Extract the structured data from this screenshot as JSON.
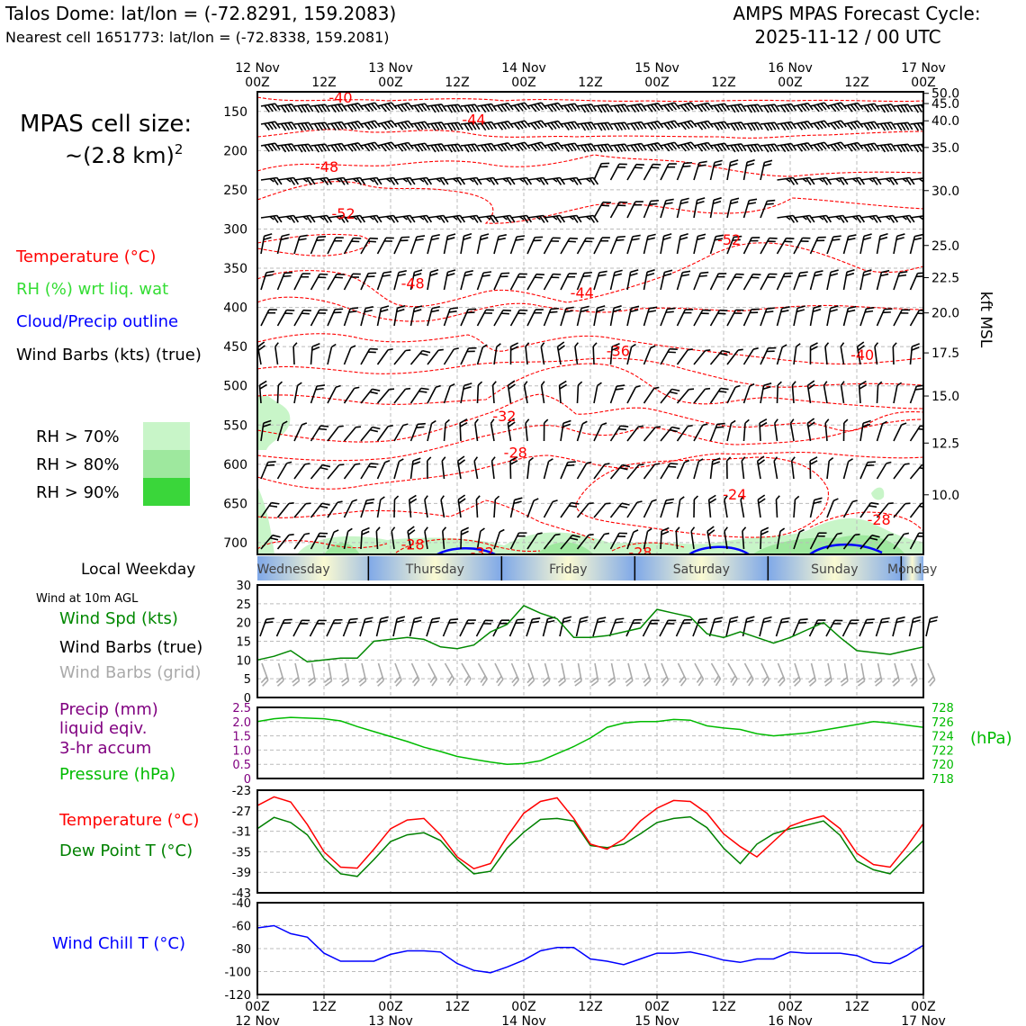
{
  "header": {
    "site_line": "Talos Dome: lat/lon = (-72.8291, 159.2083)",
    "cell_line": "Nearest cell 1651773: lat/lon = (-72.8338, 159.2081)",
    "cycle_title": "AMPS MPAS Forecast Cycle:",
    "cycle_time": "2025-11-12 / 00 UTC"
  },
  "left_panel": {
    "cell_size_title": "MPAS cell size:",
    "cell_size_value": "~(2.8 km)",
    "cell_size_exp": "2",
    "legend_temperature": "Temperature (°C)",
    "legend_rh": "RH (%) wrt liq. wat",
    "legend_cloud": "Cloud/Precip outline",
    "legend_barbs": "Wind Barbs (kts) (true)",
    "rh_swatches": [
      {
        "label": "RH > 70%",
        "color": "#c8f5c8"
      },
      {
        "label": "RH > 80%",
        "color": "#9ee89e"
      },
      {
        "label": "RH > 90%",
        "color": "#3ad63a"
      }
    ],
    "weekday_label": "Local Weekday",
    "wind_10m_label": "Wind at 10m AGL",
    "wind_spd_label": "Wind Spd (kts)",
    "wind_barbs_true_label": "Wind Barbs (true)",
    "wind_barbs_grid_label": "Wind Barbs (grid)",
    "precip_label_1": "Precip (mm)",
    "precip_label_2": "liquid eqiv.",
    "precip_label_3": "3-hr accum",
    "pressure_label": "Pressure (hPa)",
    "temp_label": "Temperature (°C)",
    "dewpoint_label": "Dew Point T (°C)",
    "windchill_label": "Wind Chill T (°C)"
  },
  "time_axis": {
    "top_ticks": [
      {
        "l1": "12 Nov",
        "l2": "00Z"
      },
      {
        "l1": "",
        "l2": "12Z"
      },
      {
        "l1": "13 Nov",
        "l2": "00Z"
      },
      {
        "l1": "",
        "l2": "12Z"
      },
      {
        "l1": "14 Nov",
        "l2": "00Z"
      },
      {
        "l1": "",
        "l2": "12Z"
      },
      {
        "l1": "15 Nov",
        "l2": "00Z"
      },
      {
        "l1": "",
        "l2": "12Z"
      },
      {
        "l1": "16 Nov",
        "l2": "00Z"
      },
      {
        "l1": "",
        "l2": "12Z"
      },
      {
        "l1": "17 Nov",
        "l2": "00Z"
      }
    ],
    "bottom_ticks": [
      {
        "l1": "00Z",
        "l2": "12 Nov"
      },
      {
        "l1": "12Z",
        "l2": ""
      },
      {
        "l1": "00Z",
        "l2": "13 Nov"
      },
      {
        "l1": "12Z",
        "l2": ""
      },
      {
        "l1": "00Z",
        "l2": "14 Nov"
      },
      {
        "l1": "12Z",
        "l2": ""
      },
      {
        "l1": "00Z",
        "l2": "15 Nov"
      },
      {
        "l1": "12Z",
        "l2": ""
      },
      {
        "l1": "00Z",
        "l2": "16 Nov"
      },
      {
        "l1": "12Z",
        "l2": ""
      },
      {
        "l1": "00Z",
        "l2": "17 Nov"
      }
    ],
    "weekdays": [
      "Wednesday",
      "Thursday",
      "Friday",
      "Saturday",
      "Sunday",
      "Monday"
    ]
  },
  "colors": {
    "temperature": "#ff0000",
    "rh": "#33dd33",
    "cloud": "#0000ff",
    "pressure": "#00bb00",
    "wind_speed": "#008800",
    "dewpoint": "#008000",
    "windchill": "#0000ff",
    "precip": "#800080",
    "grid_barb": "#aaaaaa",
    "weekday_blue": "#7fa8e8",
    "weekday_yellow": "#fafad2"
  },
  "chart_data": [
    {
      "type": "heatmap",
      "title": "Vertical cross-section (pressure vs. time)",
      "x_hours": [
        0,
        120
      ],
      "ylim_hpa": [
        125,
        715
      ],
      "left_ticks_hpa": [
        "150",
        "200",
        "250",
        "300",
        "350",
        "400",
        "450",
        "500",
        "550",
        "600",
        "650",
        "700"
      ],
      "right_axis_label": "kft MSL",
      "right_ticks": [
        {
          "label": "50.0",
          "hpa": 127
        },
        {
          "label": "45.0",
          "hpa": 140
        },
        {
          "label": "40.0",
          "hpa": 162
        },
        {
          "label": "35.0",
          "hpa": 196
        },
        {
          "label": "30.0",
          "hpa": 251
        },
        {
          "label": "25.0",
          "hpa": 321
        },
        {
          "label": "22.5",
          "hpa": 362
        },
        {
          "label": "20.0",
          "hpa": 407
        },
        {
          "label": "17.5",
          "hpa": 458
        },
        {
          "label": "15.0",
          "hpa": 513
        },
        {
          "label": "12.5",
          "hpa": 573
        },
        {
          "label": "10.0",
          "hpa": 639
        }
      ],
      "temperature_contour_labels": [
        {
          "text": "-40",
          "hour": 15,
          "hpa": 132
        },
        {
          "text": "-44",
          "hour": 39,
          "hpa": 160
        },
        {
          "text": "-48",
          "hour": 12.5,
          "hpa": 220
        },
        {
          "text": "-52",
          "hour": 15.5,
          "hpa": 280
        },
        {
          "text": "-52",
          "hour": 85,
          "hpa": 313
        },
        {
          "text": "-48",
          "hour": 28,
          "hpa": 369
        },
        {
          "text": "-44",
          "hour": 58.5,
          "hpa": 381
        },
        {
          "text": "-36",
          "hour": 65,
          "hpa": 455
        },
        {
          "text": "-40",
          "hour": 109,
          "hpa": 460
        },
        {
          "text": "-32",
          "hour": 44.5,
          "hpa": 538
        },
        {
          "text": "-28",
          "hour": 46.5,
          "hpa": 585
        },
        {
          "text": "-24",
          "hour": 86,
          "hpa": 638
        },
        {
          "text": "-28",
          "hour": 112,
          "hpa": 670
        },
        {
          "text": "-28",
          "hour": 28,
          "hpa": 702
        },
        {
          "text": "-32",
          "hour": 40.5,
          "hpa": 712
        },
        {
          "text": "-28",
          "hour": 69,
          "hpa": 712
        }
      ]
    },
    {
      "type": "line",
      "title": "Wind at 10m AGL",
      "ylim": [
        0,
        30
      ],
      "yticks": [
        0,
        5,
        10,
        15,
        20,
        25,
        30
      ],
      "series": [
        {
          "name": "Wind Spd (kts)",
          "x": [
            0,
            3,
            6,
            9,
            12,
            15,
            18,
            21,
            24,
            27,
            30,
            33,
            36,
            39,
            42,
            45,
            48,
            51,
            54,
            57,
            60,
            63,
            66,
            69,
            72,
            75,
            78,
            81,
            84,
            87,
            90,
            93,
            96,
            99,
            102,
            105,
            108,
            111,
            114,
            117,
            120
          ],
          "values": [
            10,
            11,
            12.5,
            9.5,
            10,
            10.5,
            10.5,
            15,
            15.5,
            16,
            15.5,
            13.5,
            13,
            14,
            17.5,
            19.5,
            24.5,
            22.5,
            21,
            16,
            16,
            16.5,
            17.5,
            18.5,
            23.5,
            22.5,
            21.5,
            17,
            16,
            17.5,
            16,
            14.5,
            16,
            18,
            20,
            16,
            12.5,
            12,
            11.5,
            12.5,
            13.5
          ]
        }
      ]
    },
    {
      "type": "line",
      "title": "Precip / Pressure",
      "precip_ylim": [
        0,
        2.5
      ],
      "precip_ticks": [
        "0",
        "0.5",
        "1.0",
        "1.5",
        "2.0",
        "2.5"
      ],
      "pressure_ylim": [
        718,
        728
      ],
      "pressure_ticks": [
        "718",
        "720",
        "722",
        "724",
        "726",
        "728"
      ],
      "pressure_axis_label": "(hPa)",
      "series": [
        {
          "name": "Pressure (hPa)",
          "x": [
            0,
            3,
            6,
            9,
            12,
            15,
            18,
            21,
            24,
            27,
            30,
            33,
            36,
            39,
            42,
            45,
            48,
            51,
            54,
            57,
            60,
            63,
            66,
            69,
            72,
            75,
            78,
            81,
            84,
            87,
            90,
            93,
            96,
            99,
            102,
            105,
            108,
            111,
            114,
            117,
            120
          ],
          "values": [
            726,
            726.4,
            726.6,
            726.5,
            726.4,
            726.1,
            725.3,
            724.6,
            723.9,
            723.2,
            722.4,
            721.8,
            721.1,
            720.7,
            720.3,
            720,
            720.1,
            720.5,
            721.5,
            722.5,
            723.7,
            725.2,
            725.8,
            726,
            726,
            726.3,
            726.2,
            725.4,
            725.1,
            724.9,
            724.3,
            724,
            724.2,
            724.4,
            724.8,
            725.2,
            725.6,
            726,
            725.8,
            725.5,
            725.2
          ]
        },
        {
          "name": "Precip (mm)",
          "x": [
            0,
            120
          ],
          "values": [
            0,
            0
          ]
        }
      ]
    },
    {
      "type": "line",
      "title": "Temperature / Dew Point",
      "ylim": [
        -43,
        -23
      ],
      "yticks": [
        "-23",
        "-27",
        "-31",
        "-35",
        "-39",
        "-43"
      ],
      "series": [
        {
          "name": "Temperature (°C)",
          "x": [
            0,
            3,
            6,
            9,
            12,
            15,
            18,
            21,
            24,
            27,
            30,
            33,
            36,
            39,
            42,
            45,
            48,
            51,
            54,
            57,
            60,
            63,
            66,
            69,
            72,
            75,
            78,
            81,
            84,
            87,
            90,
            93,
            96,
            99,
            102,
            105,
            108,
            111,
            114,
            117,
            120
          ],
          "values": [
            -26,
            -24.3,
            -25.3,
            -29.7,
            -35,
            -38,
            -38.2,
            -34.5,
            -30.5,
            -28.8,
            -28.5,
            -31.7,
            -36,
            -38.3,
            -37.3,
            -32,
            -27.5,
            -25.2,
            -24.5,
            -28.5,
            -33.5,
            -34.5,
            -32.5,
            -29,
            -26.5,
            -25,
            -25.2,
            -27.5,
            -31.5,
            -34,
            -36,
            -33,
            -30,
            -28.8,
            -28,
            -30.5,
            -35.3,
            -37.5,
            -38,
            -34,
            -29.5
          ]
        },
        {
          "name": "Dew Point T (°C)",
          "x": [
            0,
            3,
            6,
            9,
            12,
            15,
            18,
            21,
            24,
            27,
            30,
            33,
            36,
            39,
            42,
            45,
            48,
            51,
            54,
            57,
            60,
            63,
            66,
            69,
            72,
            75,
            78,
            81,
            84,
            87,
            90,
            93,
            96,
            99,
            102,
            105,
            108,
            111,
            114,
            117,
            120
          ],
          "values": [
            -30.5,
            -28.3,
            -29.3,
            -31.7,
            -36.3,
            -39.3,
            -39.8,
            -36.5,
            -33,
            -31.7,
            -31.3,
            -32.8,
            -36.5,
            -39.3,
            -38.8,
            -34.3,
            -31.2,
            -28.7,
            -28.5,
            -29,
            -33.8,
            -34.2,
            -33.5,
            -31.5,
            -29.3,
            -28.5,
            -28.2,
            -30.3,
            -34.3,
            -37.3,
            -33.5,
            -31.5,
            -30.5,
            -29.8,
            -29,
            -31.8,
            -36.8,
            -38.5,
            -39.3,
            -36,
            -32.8
          ]
        }
      ]
    },
    {
      "type": "line",
      "title": "Wind Chill",
      "ylim": [
        -120,
        -40
      ],
      "yticks": [
        "-40",
        "-60",
        "-80",
        "-100",
        "-120"
      ],
      "series": [
        {
          "name": "Wind Chill T (°C)",
          "x": [
            0,
            3,
            6,
            9,
            12,
            15,
            18,
            21,
            24,
            27,
            30,
            33,
            36,
            39,
            42,
            45,
            48,
            51,
            54,
            57,
            60,
            63,
            66,
            69,
            72,
            75,
            78,
            81,
            84,
            87,
            90,
            93,
            96,
            99,
            102,
            105,
            108,
            111,
            114,
            117,
            120
          ],
          "values": [
            -62,
            -60,
            -67,
            -70,
            -84,
            -91,
            -91,
            -91,
            -85,
            -82,
            -82,
            -83,
            -93,
            -99,
            -101,
            -96,
            -90,
            -82,
            -79,
            -79,
            -89,
            -91,
            -94,
            -89,
            -84,
            -84,
            -83,
            -86,
            -90,
            -92,
            -89,
            -89,
            -83,
            -84,
            -84,
            -84,
            -86,
            -92,
            -93,
            -86,
            -77
          ]
        }
      ]
    }
  ]
}
